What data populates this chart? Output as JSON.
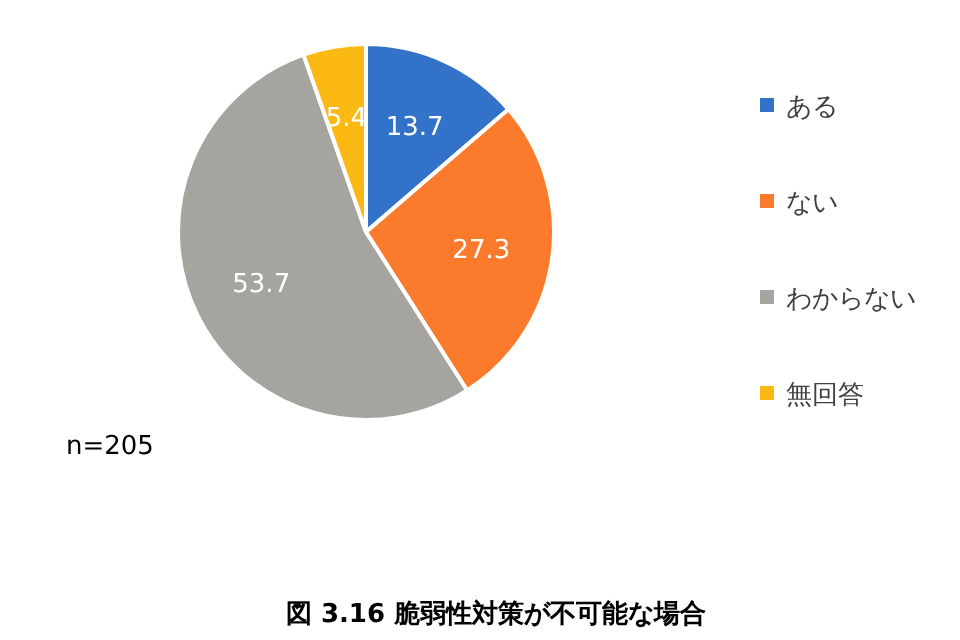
{
  "chart_data": {
    "type": "pie",
    "title": "図 3.16 脆弱性対策が不可能な場合",
    "categories": [
      "ある",
      "ない",
      "わからない",
      "無回答"
    ],
    "values": [
      13.7,
      27.3,
      53.7,
      5.4
    ],
    "colors": [
      "#3372c9",
      "#fb7a2b",
      "#a6a49f",
      "#fdb913"
    ],
    "data_labels": true,
    "legend": "right",
    "annotations": [
      "n=205"
    ]
  }
}
